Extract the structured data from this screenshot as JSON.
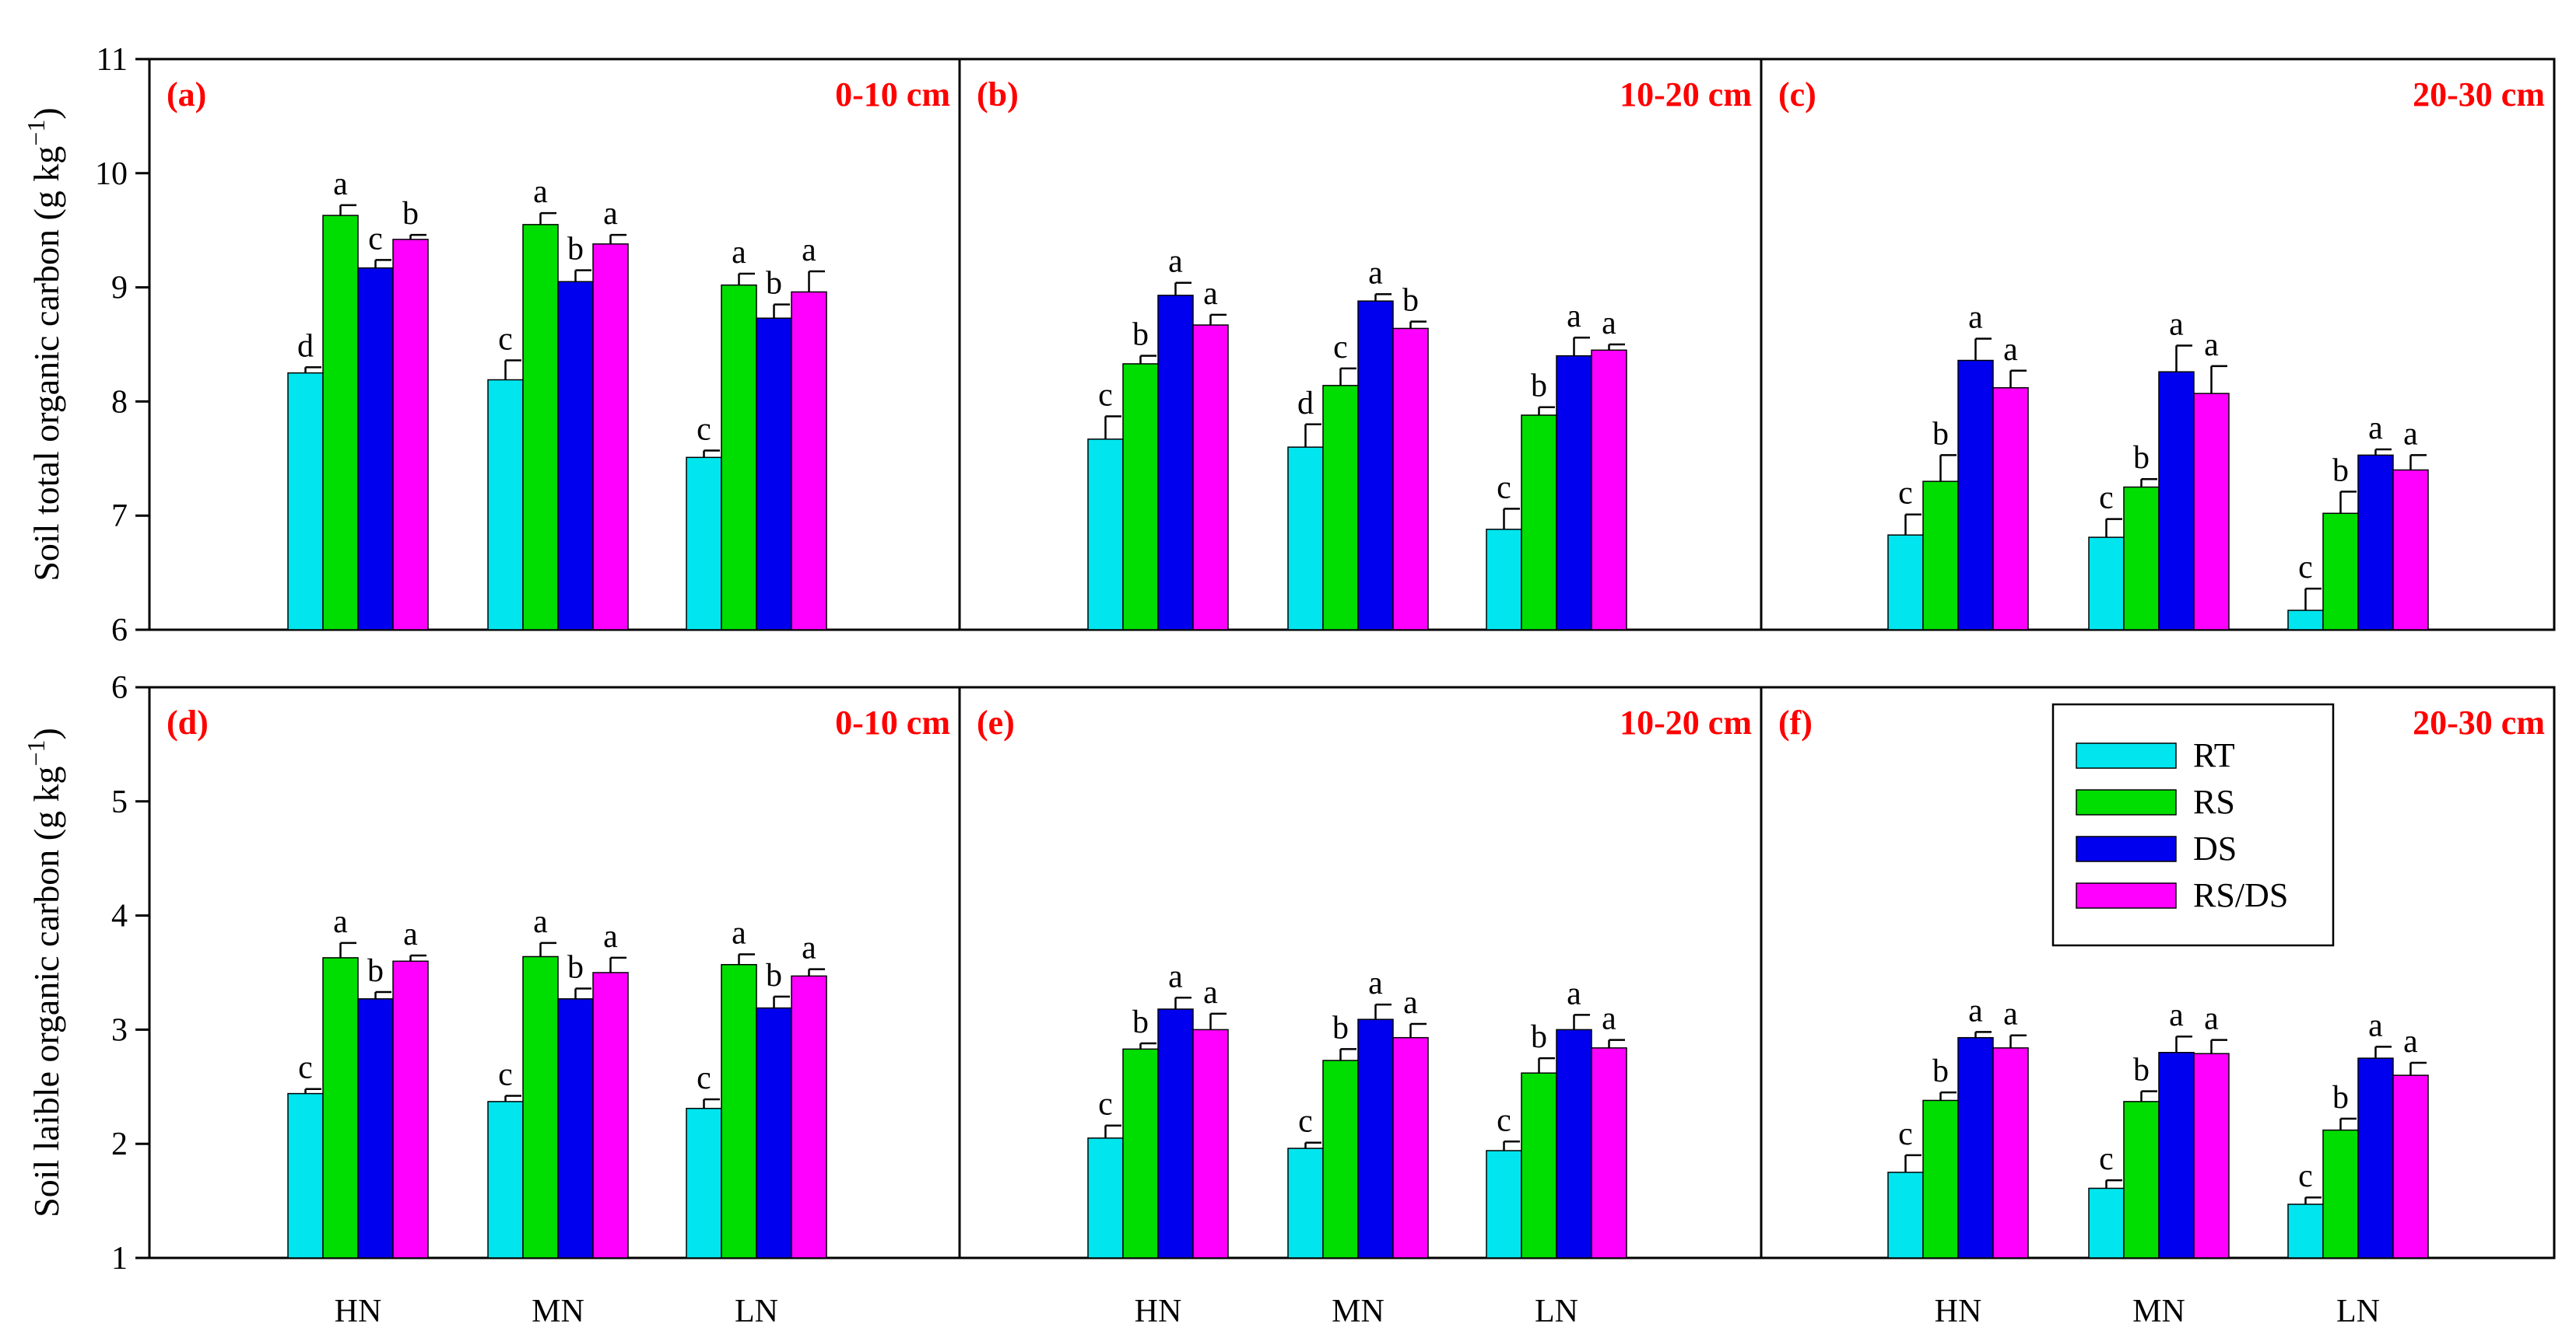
{
  "colors": {
    "RT": "#00e5ee",
    "RS": "#00dd00",
    "DS": "#0000ee",
    "RS/DS": "#ff00ff",
    "label": "#ff0000"
  },
  "legend": {
    "placement": "top-right of panel (f)",
    "entries": [
      "RT",
      "RS",
      "DS",
      "RS/DS"
    ]
  },
  "chart_data": [
    {
      "type": "bar",
      "panel": "(a)",
      "depth": "0-10 cm",
      "row": 0,
      "ylabel": "Soil total organic carbon (g kg−1)",
      "ylim": [
        6,
        11
      ],
      "yticks": [
        6,
        7,
        8,
        9,
        10,
        11
      ],
      "categories": [
        "HN",
        "MN",
        "LN"
      ],
      "series": [
        {
          "name": "RT",
          "values": [
            8.25,
            8.19,
            7.51
          ],
          "errors": [
            0.05,
            0.17,
            0.06
          ],
          "letters": [
            "d",
            "c",
            "c"
          ]
        },
        {
          "name": "RS",
          "values": [
            9.63,
            9.55,
            9.02
          ],
          "errors": [
            0.09,
            0.1,
            0.1
          ],
          "letters": [
            "a",
            "a",
            "a"
          ]
        },
        {
          "name": "DS",
          "values": [
            9.17,
            9.05,
            8.73
          ],
          "errors": [
            0.07,
            0.1,
            0.12
          ],
          "letters": [
            "c",
            "b",
            "b"
          ]
        },
        {
          "name": "RS/DS",
          "values": [
            9.42,
            9.38,
            8.96
          ],
          "errors": [
            0.04,
            0.08,
            0.18
          ],
          "letters": [
            "b",
            "a",
            "a"
          ]
        }
      ]
    },
    {
      "type": "bar",
      "panel": "(b)",
      "depth": "10-20 cm",
      "row": 0,
      "ylim": [
        6,
        11
      ],
      "categories": [
        "HN",
        "MN",
        "LN"
      ],
      "series": [
        {
          "name": "RT",
          "values": [
            7.67,
            7.6,
            6.88
          ],
          "errors": [
            0.2,
            0.2,
            0.18
          ],
          "letters": [
            "c",
            "d",
            "c"
          ]
        },
        {
          "name": "RS",
          "values": [
            8.33,
            8.14,
            7.88
          ],
          "errors": [
            0.07,
            0.15,
            0.07
          ],
          "letters": [
            "b",
            "c",
            "b"
          ]
        },
        {
          "name": "DS",
          "values": [
            8.93,
            8.88,
            8.4
          ],
          "errors": [
            0.11,
            0.06,
            0.16
          ],
          "letters": [
            "a",
            "a",
            "a"
          ]
        },
        {
          "name": "RS/DS",
          "values": [
            8.67,
            8.64,
            8.45
          ],
          "errors": [
            0.09,
            0.06,
            0.05
          ],
          "letters": [
            "a",
            "b",
            "a"
          ]
        }
      ]
    },
    {
      "type": "bar",
      "panel": "(c)",
      "depth": "20-30 cm",
      "row": 0,
      "ylim": [
        6,
        11
      ],
      "categories": [
        "HN",
        "MN",
        "LN"
      ],
      "series": [
        {
          "name": "RT",
          "values": [
            6.83,
            6.81,
            6.17
          ],
          "errors": [
            0.18,
            0.16,
            0.19
          ],
          "letters": [
            "c",
            "c",
            "c"
          ]
        },
        {
          "name": "RS",
          "values": [
            7.3,
            7.25,
            7.02
          ],
          "errors": [
            0.23,
            0.07,
            0.19
          ],
          "letters": [
            "b",
            "b",
            "b"
          ]
        },
        {
          "name": "DS",
          "values": [
            8.36,
            8.26,
            7.53
          ],
          "errors": [
            0.19,
            0.23,
            0.05
          ],
          "letters": [
            "a",
            "a",
            "a"
          ]
        },
        {
          "name": "RS/DS",
          "values": [
            8.12,
            8.07,
            7.4
          ],
          "errors": [
            0.15,
            0.24,
            0.13
          ],
          "letters": [
            "a",
            "a",
            "a"
          ]
        }
      ]
    },
    {
      "type": "bar",
      "panel": "(d)",
      "depth": "0-10 cm",
      "row": 1,
      "ylabel": "Soil laible organic carbon (g kg−1)",
      "ylim": [
        1,
        6
      ],
      "yticks": [
        1,
        2,
        3,
        4,
        5,
        6
      ],
      "categories": [
        "HN",
        "MN",
        "LN"
      ],
      "series": [
        {
          "name": "RT",
          "values": [
            2.44,
            2.37,
            2.31
          ],
          "errors": [
            0.04,
            0.05,
            0.08
          ],
          "letters": [
            "c",
            "c",
            "c"
          ]
        },
        {
          "name": "RS",
          "values": [
            3.63,
            3.64,
            3.57
          ],
          "errors": [
            0.13,
            0.12,
            0.09
          ],
          "letters": [
            "a",
            "a",
            "a"
          ]
        },
        {
          "name": "DS",
          "values": [
            3.27,
            3.27,
            3.19
          ],
          "errors": [
            0.06,
            0.09,
            0.1
          ],
          "letters": [
            "b",
            "b",
            "b"
          ]
        },
        {
          "name": "RS/DS",
          "values": [
            3.6,
            3.5,
            3.47
          ],
          "errors": [
            0.05,
            0.13,
            0.06
          ],
          "letters": [
            "a",
            "a",
            "a"
          ]
        }
      ]
    },
    {
      "type": "bar",
      "panel": "(e)",
      "depth": "10-20 cm",
      "row": 1,
      "ylim": [
        1,
        6
      ],
      "categories": [
        "HN",
        "MN",
        "LN"
      ],
      "series": [
        {
          "name": "RT",
          "values": [
            2.05,
            1.96,
            1.94
          ],
          "errors": [
            0.11,
            0.05,
            0.08
          ],
          "letters": [
            "c",
            "c",
            "c"
          ]
        },
        {
          "name": "RS",
          "values": [
            2.83,
            2.73,
            2.62
          ],
          "errors": [
            0.05,
            0.1,
            0.13
          ],
          "letters": [
            "b",
            "b",
            "b"
          ]
        },
        {
          "name": "DS",
          "values": [
            3.18,
            3.09,
            3.0
          ],
          "errors": [
            0.1,
            0.13,
            0.13
          ],
          "letters": [
            "a",
            "a",
            "a"
          ]
        },
        {
          "name": "RS/DS",
          "values": [
            3.0,
            2.93,
            2.84
          ],
          "errors": [
            0.14,
            0.12,
            0.07
          ],
          "letters": [
            "a",
            "a",
            "a"
          ]
        }
      ]
    },
    {
      "type": "bar",
      "panel": "(f)",
      "depth": "20-30 cm",
      "row": 1,
      "ylim": [
        1,
        6
      ],
      "categories": [
        "HN",
        "MN",
        "LN"
      ],
      "series": [
        {
          "name": "RT",
          "values": [
            1.75,
            1.61,
            1.47
          ],
          "errors": [
            0.15,
            0.07,
            0.06
          ],
          "letters": [
            "c",
            "c",
            "c"
          ]
        },
        {
          "name": "RS",
          "values": [
            2.38,
            2.37,
            2.12
          ],
          "errors": [
            0.07,
            0.09,
            0.1
          ],
          "letters": [
            "b",
            "b",
            "b"
          ]
        },
        {
          "name": "DS",
          "values": [
            2.93,
            2.8,
            2.75
          ],
          "errors": [
            0.05,
            0.14,
            0.1
          ],
          "letters": [
            "a",
            "a",
            "a"
          ]
        },
        {
          "name": "RS/DS",
          "values": [
            2.84,
            2.79,
            2.6
          ],
          "errors": [
            0.11,
            0.12,
            0.11
          ],
          "letters": [
            "a",
            "a",
            "a"
          ]
        }
      ]
    }
  ]
}
